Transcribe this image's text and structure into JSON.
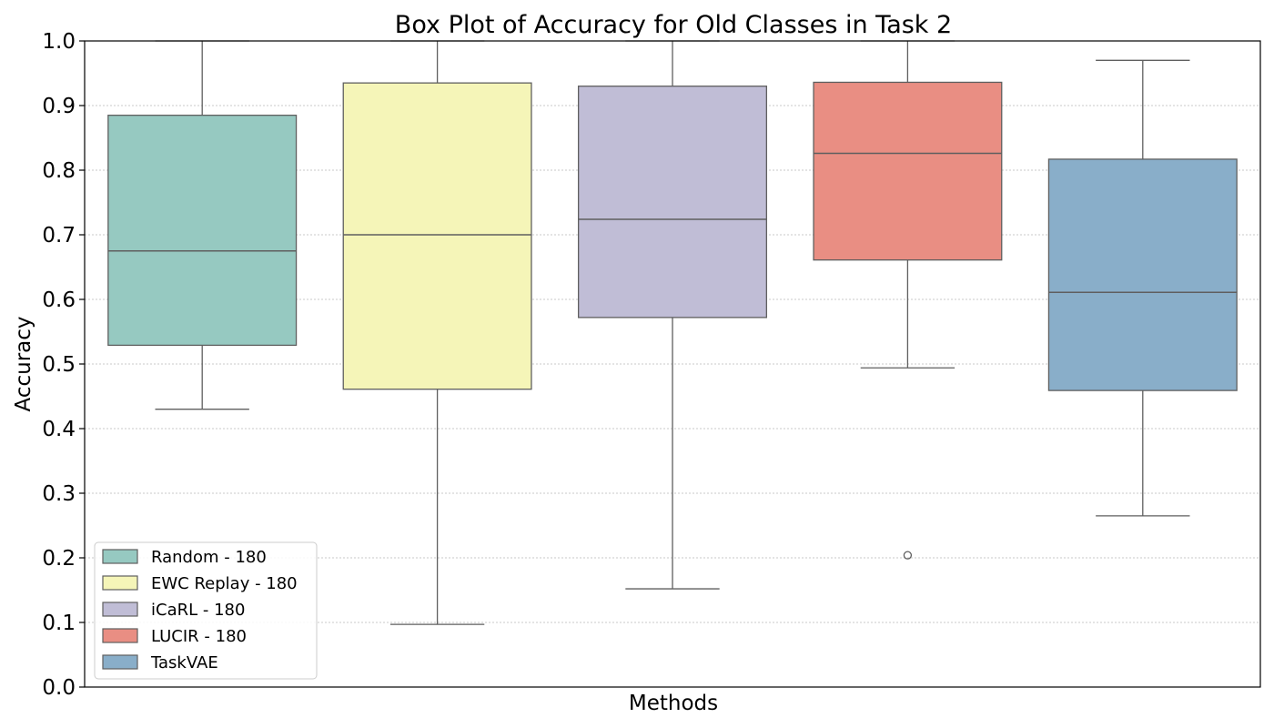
{
  "chart_data": {
    "type": "box",
    "title": "Box Plot of Accuracy for Old Classes in Task 2",
    "xlabel": "Methods",
    "ylabel": "Accuracy",
    "ylim": [
      0.0,
      1.0
    ],
    "yticks": [
      "0.0",
      "0.1",
      "0.2",
      "0.3",
      "0.4",
      "0.5",
      "0.6",
      "0.7",
      "0.8",
      "0.9",
      "1.0"
    ],
    "grid": "horizontal dotted",
    "legend_position": "lower-left",
    "series": [
      {
        "name": "Random - 180",
        "color": "#96c9c1",
        "q1": 0.529,
        "median": 0.675,
        "q3": 0.885,
        "whisker_low": 0.43,
        "whisker_high": 1.0,
        "outliers": []
      },
      {
        "name": "EWC Replay - 180",
        "color": "#f5f5b8",
        "q1": 0.461,
        "median": 0.7,
        "q3": 0.935,
        "whisker_low": 0.097,
        "whisker_high": 1.0,
        "outliers": []
      },
      {
        "name": "iCaRL - 180",
        "color": "#c0bdd6",
        "q1": 0.572,
        "median": 0.724,
        "q3": 0.93,
        "whisker_low": 0.152,
        "whisker_high": 1.0,
        "outliers": []
      },
      {
        "name": "LUCIR - 180",
        "color": "#e98e83",
        "q1": 0.661,
        "median": 0.826,
        "q3": 0.936,
        "whisker_low": 0.494,
        "whisker_high": 1.0,
        "outliers": [
          0.204
        ]
      },
      {
        "name": "TaskVAE",
        "color": "#89aec9",
        "q1": 0.459,
        "median": 0.611,
        "q3": 0.817,
        "whisker_low": 0.265,
        "whisker_high": 0.97,
        "outliers": []
      }
    ]
  }
}
